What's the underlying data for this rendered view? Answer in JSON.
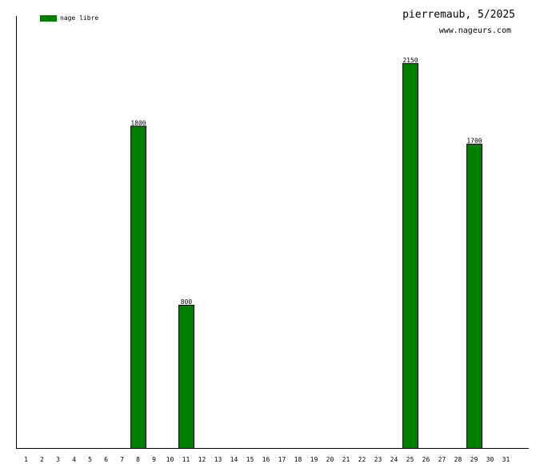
{
  "header": {
    "title": "pierremaub, 5/2025",
    "site": "www.nageurs.com"
  },
  "legend": {
    "label": "nage libre",
    "color": "#008000"
  },
  "chart_data": {
    "type": "bar",
    "title": "pierremaub, 5/2025",
    "subtitle": "www.nageurs.com",
    "xlabel": "",
    "ylabel": "",
    "categories": [
      "1",
      "2",
      "3",
      "4",
      "5",
      "6",
      "7",
      "8",
      "9",
      "10",
      "11",
      "12",
      "13",
      "14",
      "15",
      "16",
      "17",
      "18",
      "19",
      "20",
      "21",
      "22",
      "23",
      "24",
      "25",
      "26",
      "27",
      "28",
      "29",
      "30",
      "31"
    ],
    "series": [
      {
        "name": "nage libre",
        "color": "#008000",
        "values": [
          0,
          0,
          0,
          0,
          0,
          0,
          0,
          1800,
          0,
          0,
          800,
          0,
          0,
          0,
          0,
          0,
          0,
          0,
          0,
          0,
          0,
          0,
          0,
          0,
          2150,
          0,
          0,
          0,
          1700,
          0,
          0
        ]
      }
    ],
    "ylim": [
      0,
      2400
    ],
    "grid": false,
    "legend_position": "top-left"
  }
}
